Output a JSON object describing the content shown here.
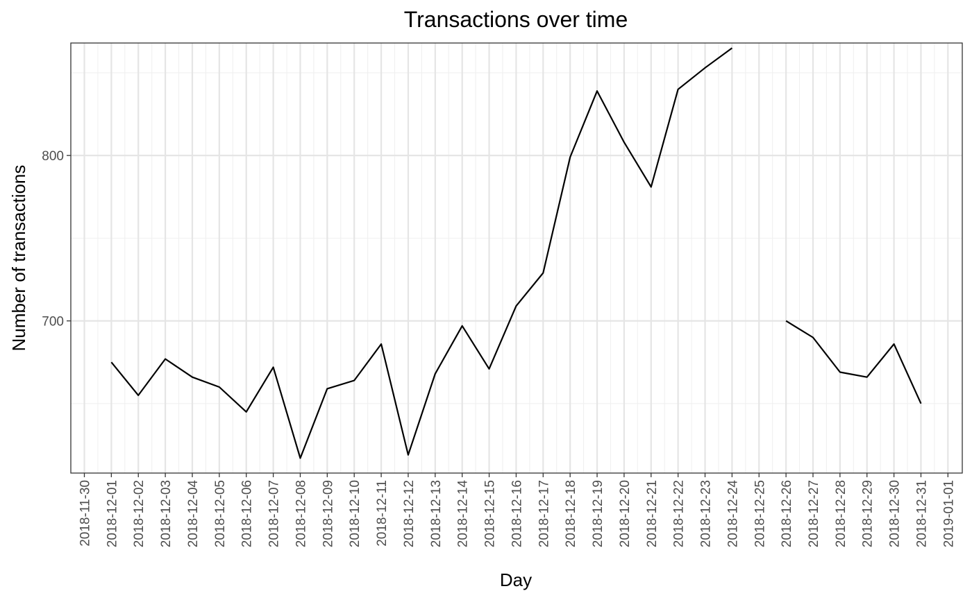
{
  "chart_data": {
    "type": "line",
    "title": "Transactions over time",
    "xlabel": "Day",
    "ylabel": "Number of transactions",
    "x_tick_labels": [
      "2018-11-30",
      "2018-12-01",
      "2018-12-02",
      "2018-12-03",
      "2018-12-04",
      "2018-12-05",
      "2018-12-06",
      "2018-12-07",
      "2018-12-08",
      "2018-12-09",
      "2018-12-10",
      "2018-12-11",
      "2018-12-12",
      "2018-12-13",
      "2018-12-14",
      "2018-12-15",
      "2018-12-16",
      "2018-12-17",
      "2018-12-18",
      "2018-12-19",
      "2018-12-20",
      "2018-12-21",
      "2018-12-22",
      "2018-12-23",
      "2018-12-24",
      "2018-12-25",
      "2018-12-26",
      "2018-12-27",
      "2018-12-28",
      "2018-12-29",
      "2018-12-30",
      "2018-12-31",
      "2019-01-01"
    ],
    "y_ticks": [
      700,
      800
    ],
    "ylim": [
      608,
      868
    ],
    "grid": true,
    "series": [
      {
        "color": "#000000",
        "points": [
          {
            "x": "2018-12-01",
            "y": 675
          },
          {
            "x": "2018-12-02",
            "y": 655
          },
          {
            "x": "2018-12-03",
            "y": 677
          },
          {
            "x": "2018-12-04",
            "y": 666
          },
          {
            "x": "2018-12-05",
            "y": 660
          },
          {
            "x": "2018-12-06",
            "y": 645
          },
          {
            "x": "2018-12-07",
            "y": 672
          },
          {
            "x": "2018-12-08",
            "y": 617
          },
          {
            "x": "2018-12-09",
            "y": 659
          },
          {
            "x": "2018-12-10",
            "y": 664
          },
          {
            "x": "2018-12-11",
            "y": 686
          },
          {
            "x": "2018-12-12",
            "y": 619
          },
          {
            "x": "2018-12-13",
            "y": 668
          },
          {
            "x": "2018-12-14",
            "y": 697
          },
          {
            "x": "2018-12-15",
            "y": 671
          },
          {
            "x": "2018-12-16",
            "y": 709
          },
          {
            "x": "2018-12-17",
            "y": 729
          },
          {
            "x": "2018-12-18",
            "y": 799
          },
          {
            "x": "2018-12-19",
            "y": 839
          },
          {
            "x": "2018-12-20",
            "y": 808
          },
          {
            "x": "2018-12-21",
            "y": 781
          },
          {
            "x": "2018-12-22",
            "y": 840
          },
          {
            "x": "2018-12-23",
            "y": 853
          },
          {
            "x": "2018-12-24",
            "y": 865
          },
          {
            "x": "2018-12-26",
            "y": 700
          },
          {
            "x": "2018-12-27",
            "y": 690
          },
          {
            "x": "2018-12-28",
            "y": 669
          },
          {
            "x": "2018-12-29",
            "y": 666
          },
          {
            "x": "2018-12-30",
            "y": 686
          },
          {
            "x": "2018-12-31",
            "y": 650
          }
        ]
      }
    ]
  }
}
